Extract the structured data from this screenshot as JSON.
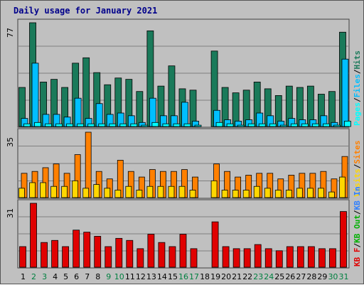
{
  "colors": {
    "hits": "#1a7a5a",
    "files": "#00bfff",
    "pages": "#00ffff",
    "visits": "#ffd700",
    "sites": "#ff8000",
    "kbf": "#e00000",
    "weekend": "#008040",
    "weekday": "#000000",
    "panel": "#c0c0c0",
    "grid": "#808080"
  },
  "chart_data": {
    "type": "bar",
    "title": "Daily usage for January 2021",
    "categories": [
      "1",
      "2",
      "3",
      "4",
      "5",
      "6",
      "7",
      "8",
      "9",
      "10",
      "11",
      "12",
      "13",
      "14",
      "15",
      "16",
      "17",
      "18",
      "19",
      "20",
      "21",
      "22",
      "23",
      "24",
      "25",
      "26",
      "27",
      "28",
      "29",
      "30",
      "31"
    ],
    "weekend_days": [
      "2",
      "3",
      "9",
      "10",
      "16",
      "17",
      "23",
      "24",
      "30",
      "31"
    ],
    "panels": [
      {
        "ymax": "77",
        "ylim": [
          0,
          77
        ],
        "legend": [
          {
            "text": "Pages",
            "color": "#00ffff"
          },
          {
            "text": "/",
            "color": "#000000"
          },
          {
            "text": "Files",
            "color": "#00bfff"
          },
          {
            "text": "/",
            "color": "#000000"
          },
          {
            "text": "Hits",
            "color": "#1a7a5a"
          }
        ],
        "series": [
          {
            "name": "Hits",
            "color": "#1a7a5a",
            "values": [
              29,
              77,
              33,
              35,
              29,
              47,
              51,
              40,
              31,
              36,
              35,
              26,
              71,
              30,
              45,
              28,
              27,
              null,
              56,
              29,
              25,
              27,
              33,
              28,
              23,
              30,
              29,
              30,
              24,
              26,
              70
            ]
          },
          {
            "name": "Files",
            "color": "#00bfff",
            "values": [
              6,
              47,
              9,
              9,
              7,
              21,
              6,
              17,
              9,
              10,
              8,
              3,
              21,
              8,
              8,
              18,
              4,
              null,
              12,
              5,
              4,
              5,
              10,
              8,
              4,
              6,
              5,
              5,
              8,
              3,
              50
            ]
          },
          {
            "name": "Pages",
            "color": "#00ffff",
            "values": [
              2,
              3,
              2,
              2,
              2,
              2,
              2,
              2,
              2,
              2,
              2,
              1,
              3,
              2,
              2,
              2,
              1,
              null,
              3,
              2,
              1,
              2,
              2,
              2,
              1,
              2,
              2,
              2,
              2,
              1,
              4
            ]
          }
        ]
      },
      {
        "ymax": "35",
        "ylim": [
          0,
          35
        ],
        "legend": [
          {
            "text": "Visits",
            "color": "#ffd700"
          },
          {
            "text": "/",
            "color": "#000000"
          },
          {
            "text": "Sites",
            "color": "#ff8000"
          }
        ],
        "series": [
          {
            "name": "Sites",
            "color": "#ff8000",
            "values": [
              13,
              14,
              16,
              18,
              13,
              23,
              35,
              14,
              10,
              20,
              14,
              11,
              15,
              14,
              14,
              15,
              11,
              null,
              18,
              14,
              11,
              12,
              13,
              13,
              10,
              12,
              13,
              13,
              14,
              10,
              22
            ]
          },
          {
            "name": "Visits",
            "color": "#ffd700",
            "values": [
              5,
              8,
              8,
              6,
              6,
              9,
              5,
              7,
              5,
              4,
              6,
              4,
              6,
              6,
              6,
              6,
              4,
              null,
              9,
              4,
              4,
              4,
              6,
              5,
              4,
              4,
              5,
              5,
              5,
              3,
              11
            ]
          }
        ]
      },
      {
        "ymax": "31",
        "ylim": [
          0,
          31
        ],
        "legend": [
          {
            "text": "KB F",
            "color": "#e00000"
          },
          {
            "text": "/",
            "color": "#000000"
          },
          {
            "text": "KB Out",
            "color": "#00b000"
          },
          {
            "text": "/",
            "color": "#000000"
          },
          {
            "text": "KB In",
            "color": "#3080ff"
          }
        ],
        "series": [
          {
            "name": "KB F",
            "color": "#e00000",
            "values": [
              10,
              31,
              12,
              13,
              10,
              18,
              17,
              15,
              10,
              14,
              13,
              9,
              16,
              12,
              10,
              16,
              9,
              null,
              22,
              10,
              9,
              9,
              11,
              9,
              8,
              10,
              10,
              10,
              9,
              9,
              27
            ]
          }
        ]
      }
    ]
  }
}
